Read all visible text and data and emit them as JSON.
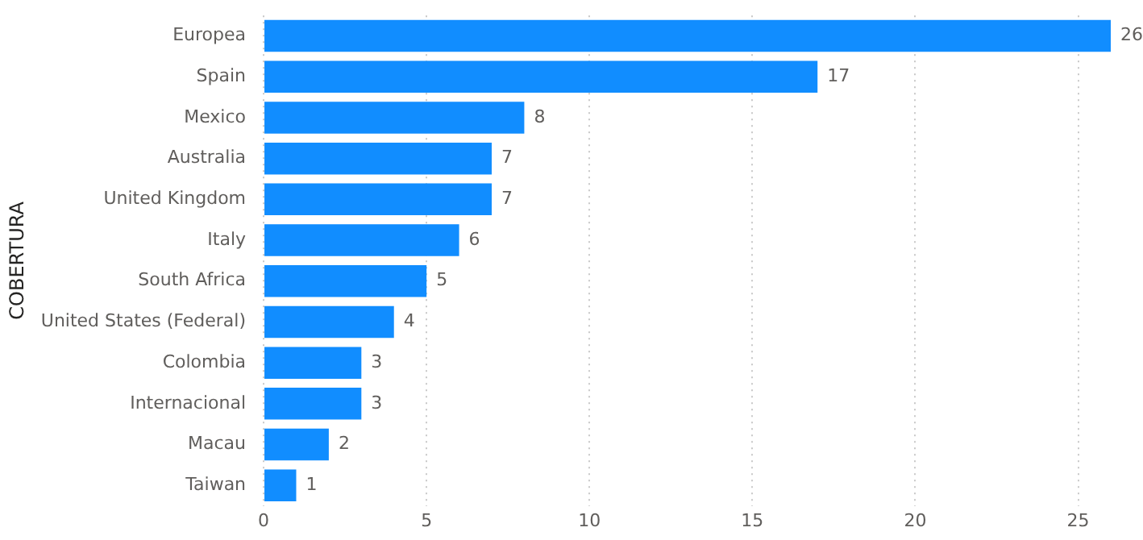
{
  "chart_data": {
    "type": "bar",
    "orientation": "horizontal",
    "ylabel": "COBERTURA",
    "categories": [
      "Europea",
      "Spain",
      "Mexico",
      "Australia",
      "United Kingdom",
      "Italy",
      "South Africa",
      "United States (Federal)",
      "Colombia",
      "Internacional",
      "Macau",
      "Taiwan"
    ],
    "values": [
      26,
      17,
      8,
      7,
      7,
      6,
      5,
      4,
      3,
      3,
      2,
      1
    ],
    "color": "#118dff",
    "xlim": [
      0,
      26
    ],
    "xticks": [
      0,
      5,
      10,
      15,
      20,
      25
    ],
    "grid": "x",
    "data_labels": true,
    "legend": false
  }
}
